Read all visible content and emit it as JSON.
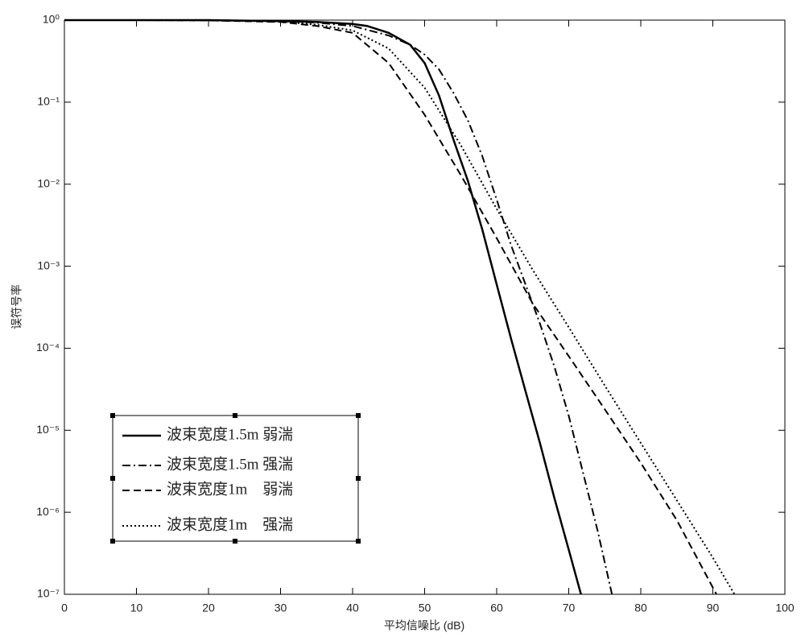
{
  "chart_data": {
    "type": "line",
    "ylog": true,
    "xlabel": "平均信噪比 (dB)",
    "ylabel": "误符号率",
    "xlim": [
      0,
      100
    ],
    "xticks": [
      0,
      10,
      20,
      30,
      40,
      50,
      60,
      70,
      80,
      90,
      100
    ],
    "ylim": [
      1e-07,
      1
    ],
    "yticks": [
      {
        "value": 1,
        "label": "10⁰"
      },
      {
        "value": 0.1,
        "label": "10⁻¹"
      },
      {
        "value": 0.01,
        "label": "10⁻²"
      },
      {
        "value": 0.001,
        "label": "10⁻³"
      },
      {
        "value": 0.0001,
        "label": "10⁻⁴"
      },
      {
        "value": 1e-05,
        "label": "10⁻⁵"
      },
      {
        "value": 1e-06,
        "label": "10⁻⁶"
      },
      {
        "value": 1e-07,
        "label": "10⁻⁷"
      }
    ],
    "grid": false,
    "legend": "lower left",
    "series": [
      {
        "name": "波束宽度1.5m 弱湍",
        "color": "#000000",
        "style": "solid",
        "x": [
          0,
          10,
          20,
          30,
          35,
          40,
          42,
          45,
          48,
          50,
          52,
          54,
          56,
          58,
          60,
          62,
          64,
          66,
          68,
          70,
          71.7
        ],
        "values": [
          1,
          1,
          1,
          0.97,
          0.95,
          0.9,
          0.85,
          0.7,
          0.5,
          0.3,
          0.12,
          0.035,
          0.011,
          0.0028,
          0.0006,
          0.00013,
          3e-05,
          7e-06,
          1.5e-06,
          3.5e-07,
          1e-07
        ]
      },
      {
        "name": "波束宽度1.5m 强湍",
        "color": "#000000",
        "style": "dashdot",
        "x": [
          0,
          10,
          20,
          30,
          35,
          40,
          45,
          48,
          50,
          52,
          54,
          56,
          58,
          60,
          62,
          64,
          66,
          68,
          70,
          72,
          74,
          76
        ],
        "values": [
          1,
          1,
          1,
          0.97,
          0.93,
          0.85,
          0.65,
          0.5,
          0.38,
          0.25,
          0.13,
          0.06,
          0.022,
          0.0065,
          0.0018,
          0.0006,
          0.0002,
          6e-05,
          1.5e-05,
          3e-06,
          6e-07,
          1e-07
        ]
      },
      {
        "name": "波束宽度1m    弱湍",
        "color": "#000000",
        "style": "dashed",
        "x": [
          0,
          10,
          20,
          30,
          35,
          40,
          45,
          50,
          55,
          60,
          65,
          70,
          75,
          80,
          85,
          90.5
        ],
        "values": [
          1,
          1,
          0.99,
          0.95,
          0.85,
          0.7,
          0.3,
          0.07,
          0.013,
          0.0022,
          0.00035,
          8e-05,
          1.8e-05,
          4e-06,
          8e-07,
          1e-07
        ]
      },
      {
        "name": "波束宽度1m    强湍",
        "color": "#000000",
        "style": "dotted",
        "x": [
          0,
          10,
          20,
          30,
          35,
          40,
          45,
          50,
          55,
          60,
          65,
          70,
          75,
          80,
          85,
          90,
          93
        ],
        "values": [
          1,
          1,
          0.99,
          0.96,
          0.88,
          0.75,
          0.45,
          0.15,
          0.03,
          0.005,
          0.0009,
          0.00018,
          3.5e-05,
          7e-06,
          1.4e-06,
          2.8e-07,
          1e-07
        ]
      }
    ]
  }
}
